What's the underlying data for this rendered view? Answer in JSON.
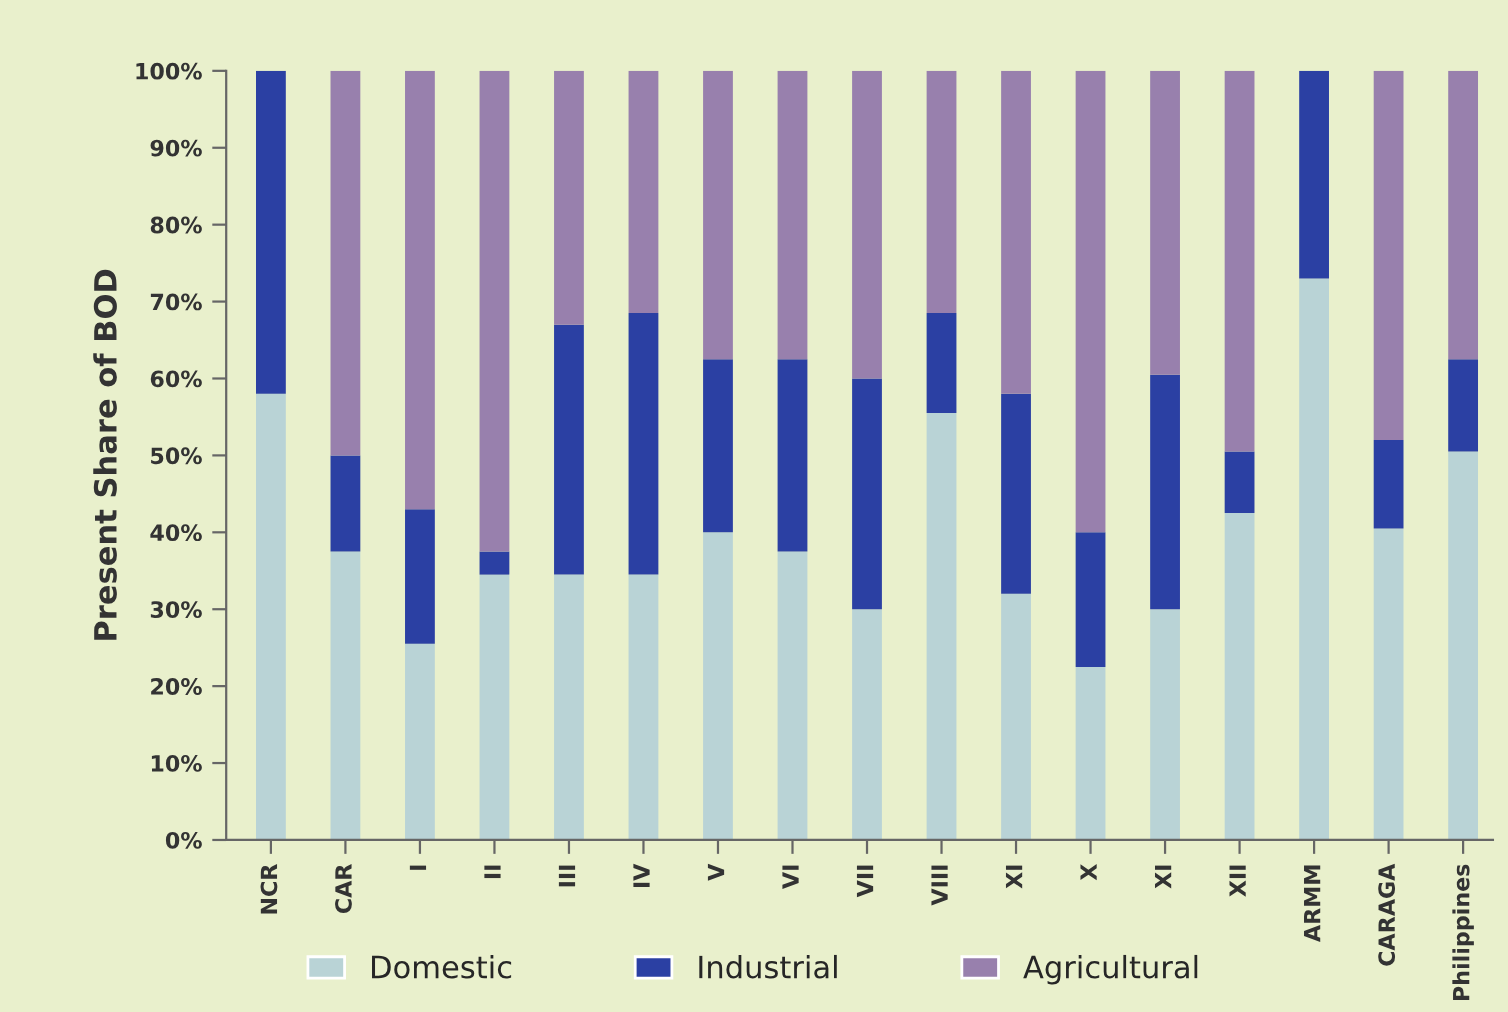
{
  "chart_data": {
    "type": "bar",
    "stacked": true,
    "ylabel": "Present Share of BOD",
    "categories": [
      "NCR",
      "CAR",
      "I",
      "II",
      "III",
      "IV",
      "V",
      "VI",
      "VII",
      "VIII",
      "XI",
      "X",
      "XI",
      "XII",
      "ARMM",
      "CARAGA",
      "Philippines"
    ],
    "series": [
      {
        "name": "Domestic",
        "color": "#b9d3d6",
        "values": [
          58,
          37.5,
          25.5,
          34.5,
          34.5,
          34.5,
          40,
          37.5,
          30,
          55.5,
          32,
          22.5,
          30,
          42.5,
          73,
          40.5,
          50.5
        ]
      },
      {
        "name": "Industrial",
        "color": "#2b40a3",
        "values": [
          42,
          12.5,
          17.5,
          3,
          32.5,
          34,
          22.5,
          25,
          30,
          13,
          26,
          17.5,
          30.5,
          8,
          27,
          11.5,
          12
        ]
      },
      {
        "name": "Agricultural",
        "color": "#9880ad",
        "values": [
          0,
          50,
          57,
          62.5,
          33,
          31.5,
          37.5,
          37.5,
          40,
          31.5,
          42,
          60,
          39.5,
          49.5,
          0,
          48,
          37.5
        ]
      }
    ],
    "ylim": [
      0,
      100
    ],
    "yticks": [
      {
        "value": 0,
        "label": "0%"
      },
      {
        "value": 10,
        "label": "10%"
      },
      {
        "value": 20,
        "label": "20%"
      },
      {
        "value": 30,
        "label": "30%"
      },
      {
        "value": 40,
        "label": "40%"
      },
      {
        "value": 50,
        "label": "50%"
      },
      {
        "value": 60,
        "label": "60%"
      },
      {
        "value": 70,
        "label": "70%"
      },
      {
        "value": 80,
        "label": "80%"
      },
      {
        "value": 90,
        "label": "90%"
      },
      {
        "value": 100,
        "label": "100%"
      }
    ],
    "grid": false,
    "legend": "bottom"
  }
}
